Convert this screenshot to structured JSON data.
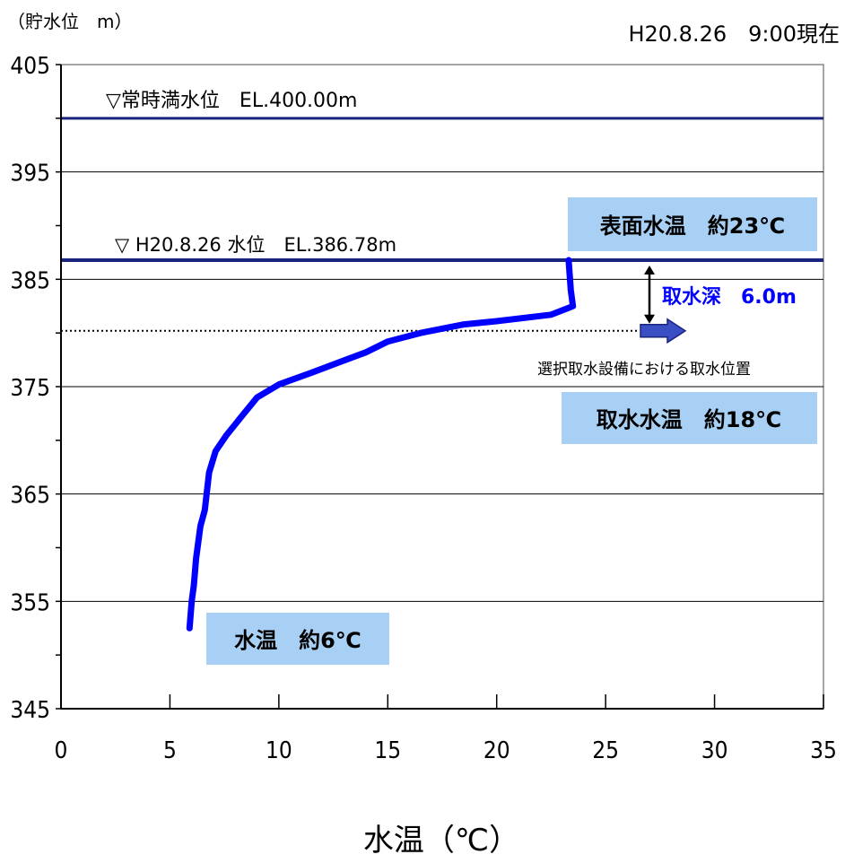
{
  "header": {
    "y_unit_label": "（貯水位　m）",
    "timestamp": "H20.8.26　9:00現在"
  },
  "chart_data": {
    "type": "line",
    "title": "",
    "xlabel": "水温（℃）",
    "ylabel": "（貯水位　m）",
    "xlim": [
      0,
      35
    ],
    "ylim": [
      345,
      405
    ],
    "x_ticks": [
      0,
      5,
      10,
      15,
      20,
      25,
      30,
      35
    ],
    "y_ticks": [
      345,
      355,
      365,
      375,
      385,
      395,
      405
    ],
    "grid": "horizontal",
    "series": [
      {
        "color": "#0000ff",
        "x": [
          5.9,
          6.0,
          6.1,
          6.2,
          6.4,
          6.6,
          6.8,
          7.1,
          7.6,
          8.0,
          8.2,
          9.0,
          10.0,
          11.5,
          14.0,
          15.0,
          16.5,
          18.5,
          20.0,
          22.5,
          23.5,
          23.4,
          23.3
        ],
        "y": [
          352.5,
          355.0,
          356.5,
          359.0,
          362.0,
          363.5,
          367.0,
          369.0,
          370.5,
          371.5,
          372.0,
          374.0,
          375.2,
          376.3,
          378.2,
          379.2,
          380.0,
          380.8,
          381.1,
          381.7,
          382.5,
          384.0,
          386.78
        ]
      }
    ],
    "reference_lines": [
      {
        "label": "▽常時満水位　EL.400.00m",
        "y": 400.0,
        "color": "#1a237e"
      },
      {
        "label": "▽ H20.8.26 水位　EL.386.78m",
        "y": 386.78,
        "color": "#1a237e"
      }
    ],
    "intake_level_y": 380.2,
    "annotations": {
      "surface_temp": "表面水温　約23℃",
      "intake_depth": "取水深　6.0m",
      "intake_position": "選択取水設備における取水位置",
      "intake_temp": "取水水温　約18℃",
      "bottom_temp": "水温　約6℃"
    },
    "colors": {
      "curve": "#0000ff",
      "reference_line": "#1a237e",
      "label_box": "#a8d0f5",
      "intake_depth_text": "#0000ff",
      "arrow_fill": "#3a4fc4"
    }
  }
}
